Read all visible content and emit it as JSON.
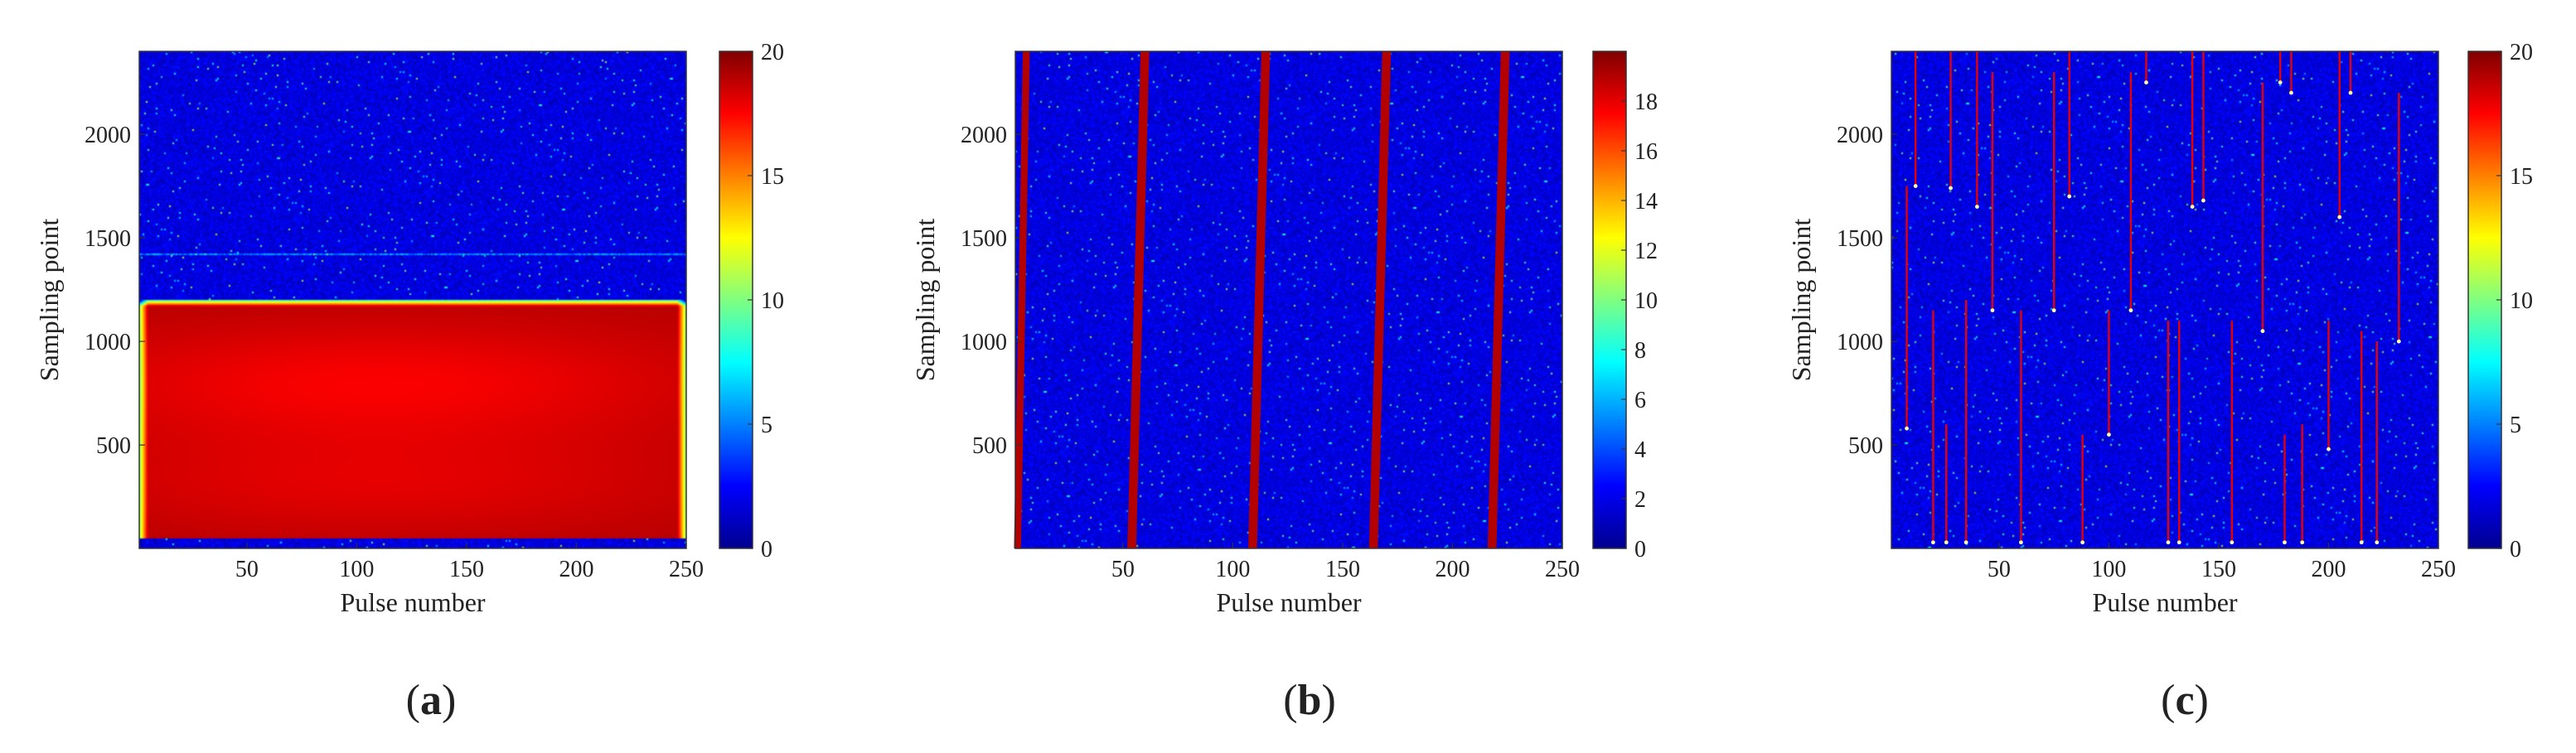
{
  "figure": {
    "panel_labels": [
      "(a)",
      "(b)",
      "(c)"
    ]
  },
  "colormap": [
    "#00008f",
    "#0000ff",
    "#0080ff",
    "#00ffff",
    "#80ff80",
    "#ffff00",
    "#ff8000",
    "#ff0000",
    "#800000"
  ],
  "chart_data": [
    {
      "type": "heatmap",
      "panel": "a",
      "label": "(a)",
      "xlabel": "Pulse number",
      "ylabel": "Sampling point",
      "xlim": [
        1,
        250
      ],
      "ylim": [
        1,
        2400
      ],
      "xticks": [
        50,
        100,
        150,
        200,
        250
      ],
      "yticks": [
        500,
        1000,
        1500,
        2000
      ],
      "colorbar": {
        "min": 0,
        "max": 20,
        "ticks": [
          0,
          5,
          10,
          15,
          20
        ]
      },
      "background_level": 1.5,
      "noise": 2,
      "band": {
        "y_start": 50,
        "y_end": 1200,
        "level": 19
      },
      "faint_line": {
        "y": 1420,
        "level": 6
      }
    },
    {
      "type": "heatmap",
      "panel": "b",
      "label": "(b)",
      "xlabel": "Pulse number",
      "ylabel": "Sampling point",
      "xlim": [
        1,
        250
      ],
      "ylim": [
        1,
        2400
      ],
      "xticks": [
        50,
        100,
        150,
        200,
        250
      ],
      "yticks": [
        500,
        1000,
        1500,
        2000
      ],
      "colorbar": {
        "min": 0,
        "max": 20,
        "ticks": [
          0,
          2,
          4,
          6,
          8,
          10,
          12,
          14,
          16,
          18
        ]
      },
      "background_level": 1.5,
      "noise": 2,
      "stripes": [
        {
          "x_bottom": 2,
          "x_top": 6,
          "width": 3.2,
          "level": 19
        },
        {
          "x_bottom": 54,
          "x_top": 60,
          "width": 4,
          "level": 19
        },
        {
          "x_bottom": 109,
          "x_top": 115,
          "width": 4,
          "level": 19
        },
        {
          "x_bottom": 164,
          "x_top": 170,
          "width": 4,
          "level": 19
        },
        {
          "x_bottom": 218,
          "x_top": 224,
          "width": 4,
          "level": 19
        }
      ]
    },
    {
      "type": "heatmap",
      "panel": "c",
      "label": "(c)",
      "xlabel": "Pulse number",
      "ylabel": "Sampling point",
      "xlim": [
        1,
        250
      ],
      "ylim": [
        1,
        2400
      ],
      "xticks": [
        50,
        100,
        150,
        200,
        250
      ],
      "yticks": [
        500,
        1000,
        1500,
        2000
      ],
      "colorbar": {
        "min": 0,
        "max": 20,
        "ticks": [
          0,
          5,
          10,
          15,
          20
        ]
      },
      "background_level": 1.5,
      "noise": 2,
      "streaks": [
        {
          "x": 12,
          "y_from": 2400,
          "y_to": 1750,
          "level": 18
        },
        {
          "x": 28,
          "y_from": 2400,
          "y_to": 1740,
          "level": 18
        },
        {
          "x": 40,
          "y_from": 2400,
          "y_to": 1650,
          "level": 18
        },
        {
          "x": 47,
          "y_from": 2300,
          "y_to": 1150,
          "level": 18
        },
        {
          "x": 75,
          "y_from": 2300,
          "y_to": 1150,
          "level": 18
        },
        {
          "x": 82,
          "y_from": 2400,
          "y_to": 1700,
          "level": 18
        },
        {
          "x": 110,
          "y_from": 2300,
          "y_to": 1150,
          "level": 18
        },
        {
          "x": 117,
          "y_from": 2400,
          "y_to": 2250,
          "level": 18
        },
        {
          "x": 138,
          "y_from": 2400,
          "y_to": 1650,
          "level": 18
        },
        {
          "x": 143,
          "y_from": 2400,
          "y_to": 1680,
          "level": 18
        },
        {
          "x": 170,
          "y_from": 2250,
          "y_to": 1050,
          "level": 18
        },
        {
          "x": 178,
          "y_from": 2400,
          "y_to": 2250,
          "level": 18
        },
        {
          "x": 183,
          "y_from": 2400,
          "y_to": 2200,
          "level": 18
        },
        {
          "x": 205,
          "y_from": 2400,
          "y_to": 1600,
          "level": 18
        },
        {
          "x": 210,
          "y_from": 2400,
          "y_to": 2200,
          "level": 18
        },
        {
          "x": 232,
          "y_from": 2200,
          "y_to": 1000,
          "level": 18
        },
        {
          "x": 8,
          "y_from": 1750,
          "y_to": 580,
          "level": 18
        },
        {
          "x": 20,
          "y_from": 1150,
          "y_to": 30,
          "level": 18
        },
        {
          "x": 26,
          "y_from": 600,
          "y_to": 30,
          "level": 18
        },
        {
          "x": 35,
          "y_from": 1200,
          "y_to": 30,
          "level": 18
        },
        {
          "x": 60,
          "y_from": 1150,
          "y_to": 30,
          "level": 18
        },
        {
          "x": 88,
          "y_from": 550,
          "y_to": 30,
          "level": 18
        },
        {
          "x": 100,
          "y_from": 1150,
          "y_to": 550,
          "level": 18
        },
        {
          "x": 127,
          "y_from": 1100,
          "y_to": 30,
          "level": 18
        },
        {
          "x": 132,
          "y_from": 1100,
          "y_to": 30,
          "level": 18
        },
        {
          "x": 156,
          "y_from": 1100,
          "y_to": 30,
          "level": 18
        },
        {
          "x": 180,
          "y_from": 550,
          "y_to": 30,
          "level": 18
        },
        {
          "x": 188,
          "y_from": 600,
          "y_to": 30,
          "level": 18
        },
        {
          "x": 200,
          "y_from": 1100,
          "y_to": 480,
          "level": 18
        },
        {
          "x": 215,
          "y_from": 1050,
          "y_to": 30,
          "level": 18
        },
        {
          "x": 222,
          "y_from": 1000,
          "y_to": 30,
          "level": 18
        }
      ]
    }
  ]
}
